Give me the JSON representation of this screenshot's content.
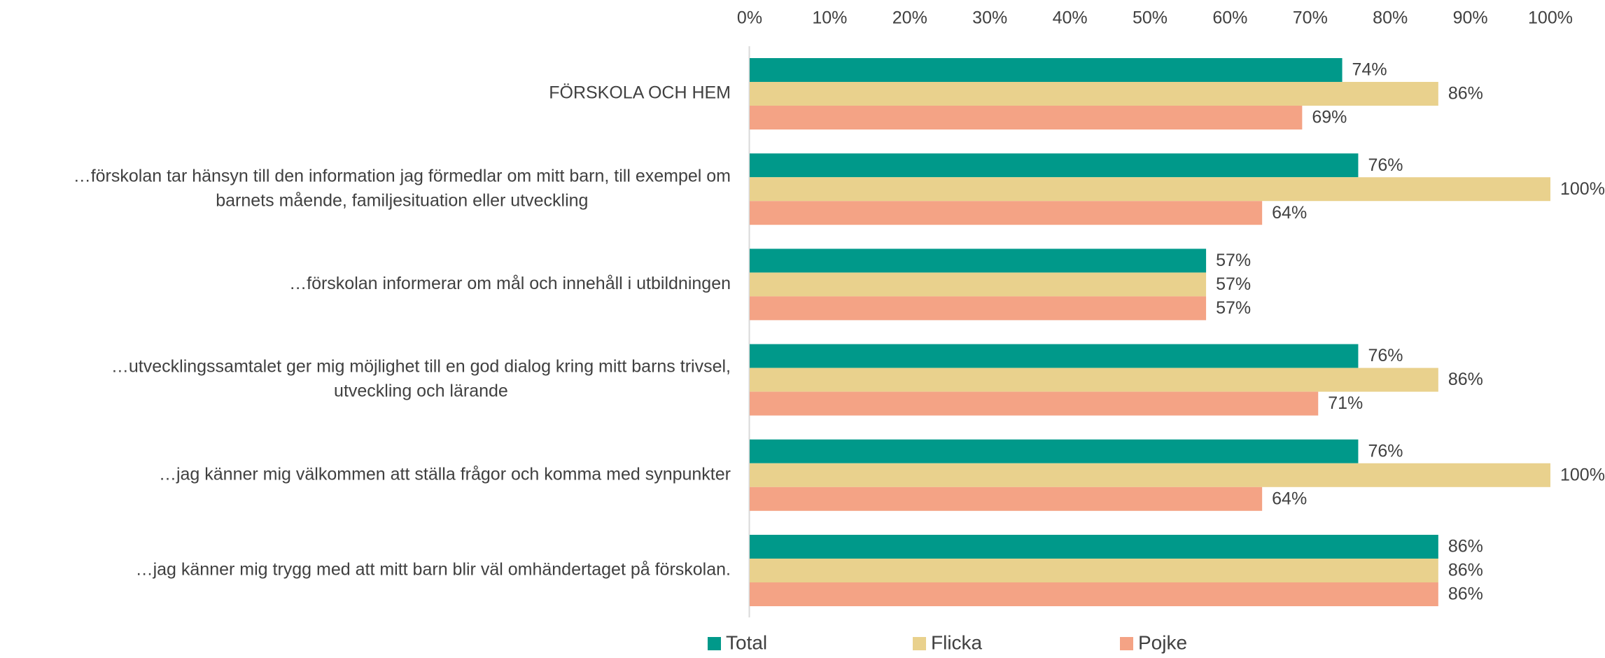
{
  "chart_data": {
    "type": "bar",
    "orientation": "horizontal",
    "categories": [
      [
        "FÖRSKOLA OCH HEM"
      ],
      [
        "…förskolan tar hänsyn till den information jag förmedlar om mitt barn, till exempel om",
        "barnets mående, familjesituation eller utveckling"
      ],
      [
        "…förskolan informerar om mål och innehåll i utbildningen"
      ],
      [
        "…utvecklingssamtalet ger mig möjlighet till en god dialog kring mitt barns trivsel,",
        "utveckling och lärande"
      ],
      [
        "…jag känner mig välkommen att ställa frågor och komma med synpunkter"
      ],
      [
        "…jag känner mig trygg med att mitt barn blir väl omhändertaget på förskolan."
      ]
    ],
    "series": [
      {
        "name": "Total",
        "color": "#00998a",
        "values": [
          74,
          76,
          57,
          76,
          76,
          86
        ]
      },
      {
        "name": "Flicka",
        "color": "#e9d18d",
        "values": [
          86,
          100,
          57,
          86,
          100,
          86
        ]
      },
      {
        "name": "Pojke",
        "color": "#f4a385",
        "values": [
          69,
          64,
          57,
          71,
          64,
          86
        ]
      }
    ],
    "value_suffix": "%",
    "xlim": [
      0,
      100
    ],
    "x_ticks": [
      "0%",
      "10%",
      "20%",
      "30%",
      "40%",
      "50%",
      "60%",
      "70%",
      "80%",
      "90%",
      "100%"
    ],
    "x_axis_position": "top",
    "grid": false,
    "legend_position": "bottom",
    "title": "",
    "xlabel": "",
    "ylabel": ""
  }
}
